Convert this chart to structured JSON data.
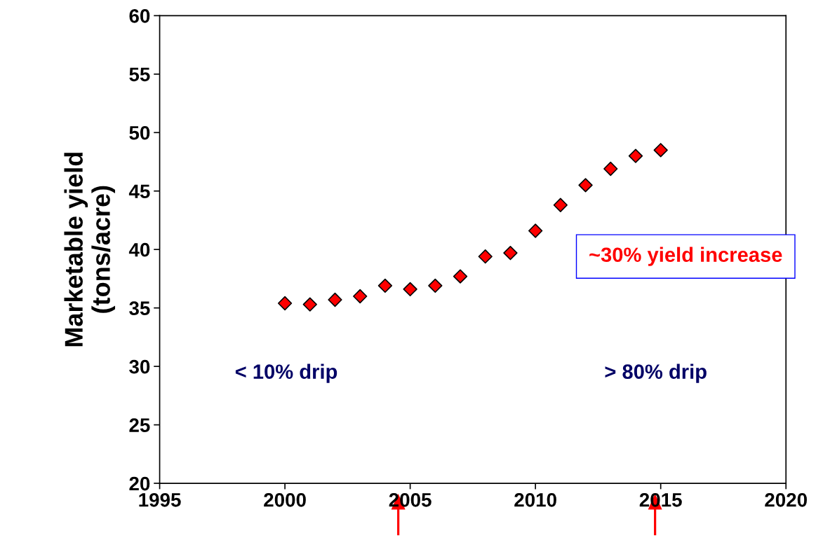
{
  "chart_data": {
    "type": "scatter",
    "ylabel": "Marketable yield\n(tons/acre)",
    "x": [
      2000,
      2001,
      2002,
      2003,
      2004,
      2005,
      2006,
      2007,
      2008,
      2009,
      2010,
      2011,
      2012,
      2013,
      2014,
      2015
    ],
    "series": [
      {
        "color": "#ff0000",
        "values": [
          35.4,
          35.3,
          35.7,
          36.0,
          36.9,
          36.6,
          36.9,
          37.7,
          39.4,
          39.7,
          41.6,
          43.8,
          45.5,
          46.9,
          48.0,
          48.5
        ]
      }
    ],
    "marker": "diamond",
    "xlim": [
      1995,
      2020
    ],
    "xticks": [
      1995,
      2000,
      2005,
      2010,
      2015,
      2020
    ],
    "ylim": [
      20,
      60
    ],
    "yticks": [
      20,
      25,
      30,
      35,
      40,
      45,
      50,
      55,
      60
    ],
    "grid": false,
    "annotations": [
      "~30% yield increase",
      "< 10% drip",
      "> 80% drip"
    ]
  }
}
